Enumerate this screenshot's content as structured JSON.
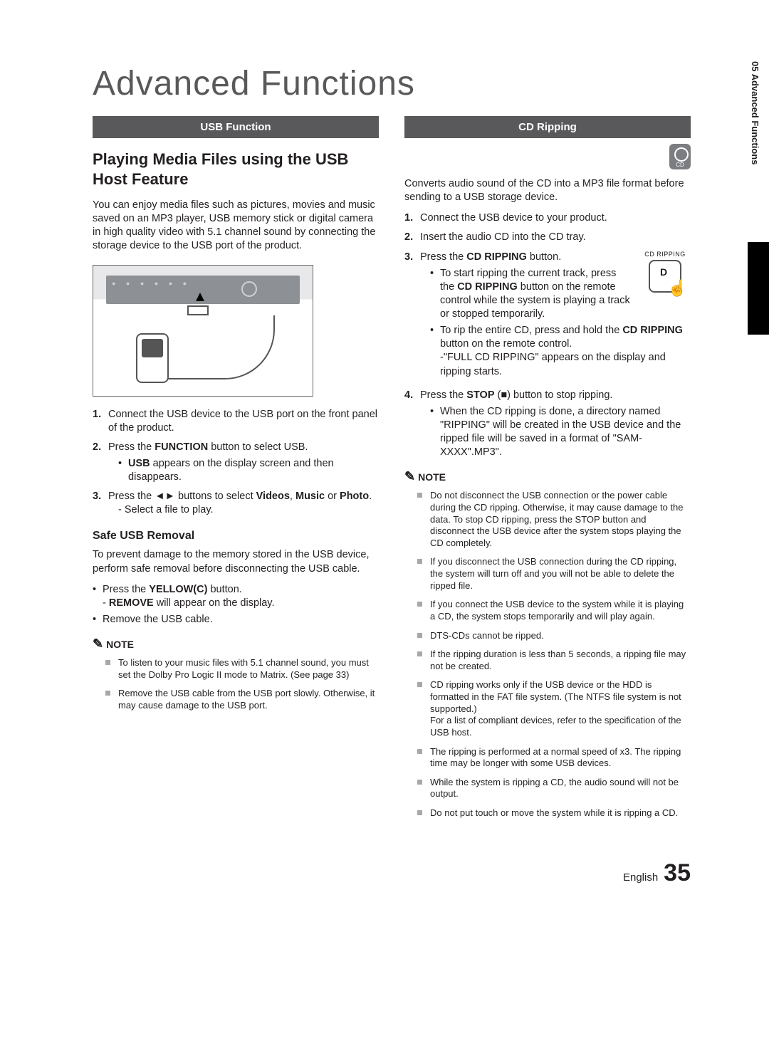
{
  "sideTab": "05  Advanced Functions",
  "pageTitle": "Advanced Functions",
  "footer": {
    "lang": "English",
    "page": "35"
  },
  "left": {
    "bar": "USB Function",
    "subhead": "Playing Media Files using the USB Host Feature",
    "intro": "You can enjoy media files such as pictures, movies and music saved on an MP3 player, USB memory stick or digital camera in high quality video with 5.1 channel sound by connecting the storage device to the USB port of the product.",
    "steps": [
      {
        "n": "1.",
        "t": "Connect the USB device to the USB port on the front panel of the product."
      },
      {
        "n": "2.",
        "t_pre": "Press the ",
        "b1": "FUNCTION",
        "t_post": " button to select USB.",
        "sub": [
          {
            "pre": "",
            "b": "USB",
            "post": " appears on the display screen and then disappears."
          }
        ]
      },
      {
        "n": "3.",
        "t_pre": "Press the ◄► buttons to select ",
        "b1": "Videos",
        "mid": ", ",
        "b2": "Music",
        "mid2": " or ",
        "b3": "Photo",
        "t_post": ".",
        "dash": "- Select a file to play."
      }
    ],
    "safe": {
      "h": "Safe USB Removal",
      "p": "To prevent damage to the memory stored in the USB device, perform safe removal before disconnecting the USB cable.",
      "b1_pre": "Press the ",
      "b1_b": "YELLOW(C)",
      "b1_post": " button.",
      "b1_dash_pre": "- ",
      "b1_dash_b": "REMOVE",
      "b1_dash_post": " will appear on the display.",
      "b2": "Remove the USB cable."
    },
    "noteHead": "NOTE",
    "notes": [
      "To listen to your music files with 5.1 channel sound, you must set the Dolby Pro Logic II mode to Matrix. (See page 33)",
      "Remove the USB cable from the USB port slowly. Otherwise, it may cause damage to the USB port."
    ]
  },
  "right": {
    "bar": "CD Ripping",
    "intro": "Converts audio sound of the CD into a MP3 file format before sending to a USB storage device.",
    "ripLabel": "CD RIPPING",
    "steps": [
      {
        "n": "1.",
        "t": "Connect the USB device to your product."
      },
      {
        "n": "2.",
        "t": "Insert the audio CD into the CD tray."
      },
      {
        "n": "3.",
        "pre": "Press the ",
        "b": "CD RIPPING",
        "post": " button.",
        "sub": [
          {
            "pre": "To start ripping the current track, press the ",
            "b": "CD RIPPING",
            "post": " button on the remote control while the system is playing a track or stopped temporarily."
          },
          {
            "pre": "To rip the entire CD, press and hold the ",
            "b": "CD RIPPING",
            "post": " button on the remote control.",
            "dash": "-\"FULL CD RIPPING\" appears on the display and ripping starts."
          }
        ]
      },
      {
        "n": "4.",
        "pre": "Press the ",
        "b": "STOP",
        "post": " (■) button to stop ripping.",
        "sub": [
          {
            "t": "When the CD ripping is done, a directory named \"RIPPING\" will be created in the USB device and the ripped file will be saved in a format of \"SAM-XXXX\".MP3\"."
          }
        ]
      }
    ],
    "noteHead": "NOTE",
    "notes": [
      "Do not disconnect the USB connection or the power cable during the CD ripping. Otherwise, it may cause damage to the data. To stop CD ripping, press the STOP button and disconnect the USB device after the system stops playing the CD completely.",
      "If you disconnect the USB connection during the CD ripping, the system will turn off and you will not be able to delete the ripped file.",
      "If you connect the USB device to the system while it is playing a CD, the system stops temporarily and will play again.",
      "DTS-CDs cannot be ripped.",
      "If the ripping duration is less than 5 seconds, a ripping file may not be created.",
      "CD ripping works only if the USB device or the HDD is formatted in the FAT file system. (The NTFS file system is not supported.)\nFor a list of compliant devices, refer to the specification of the USB host.",
      "The ripping is performed at a normal speed of x3. The ripping time may be longer with some USB devices.",
      "While the system is ripping a CD, the audio sound will not be output.",
      "Do not put touch or move the system while it is ripping a CD."
    ]
  }
}
